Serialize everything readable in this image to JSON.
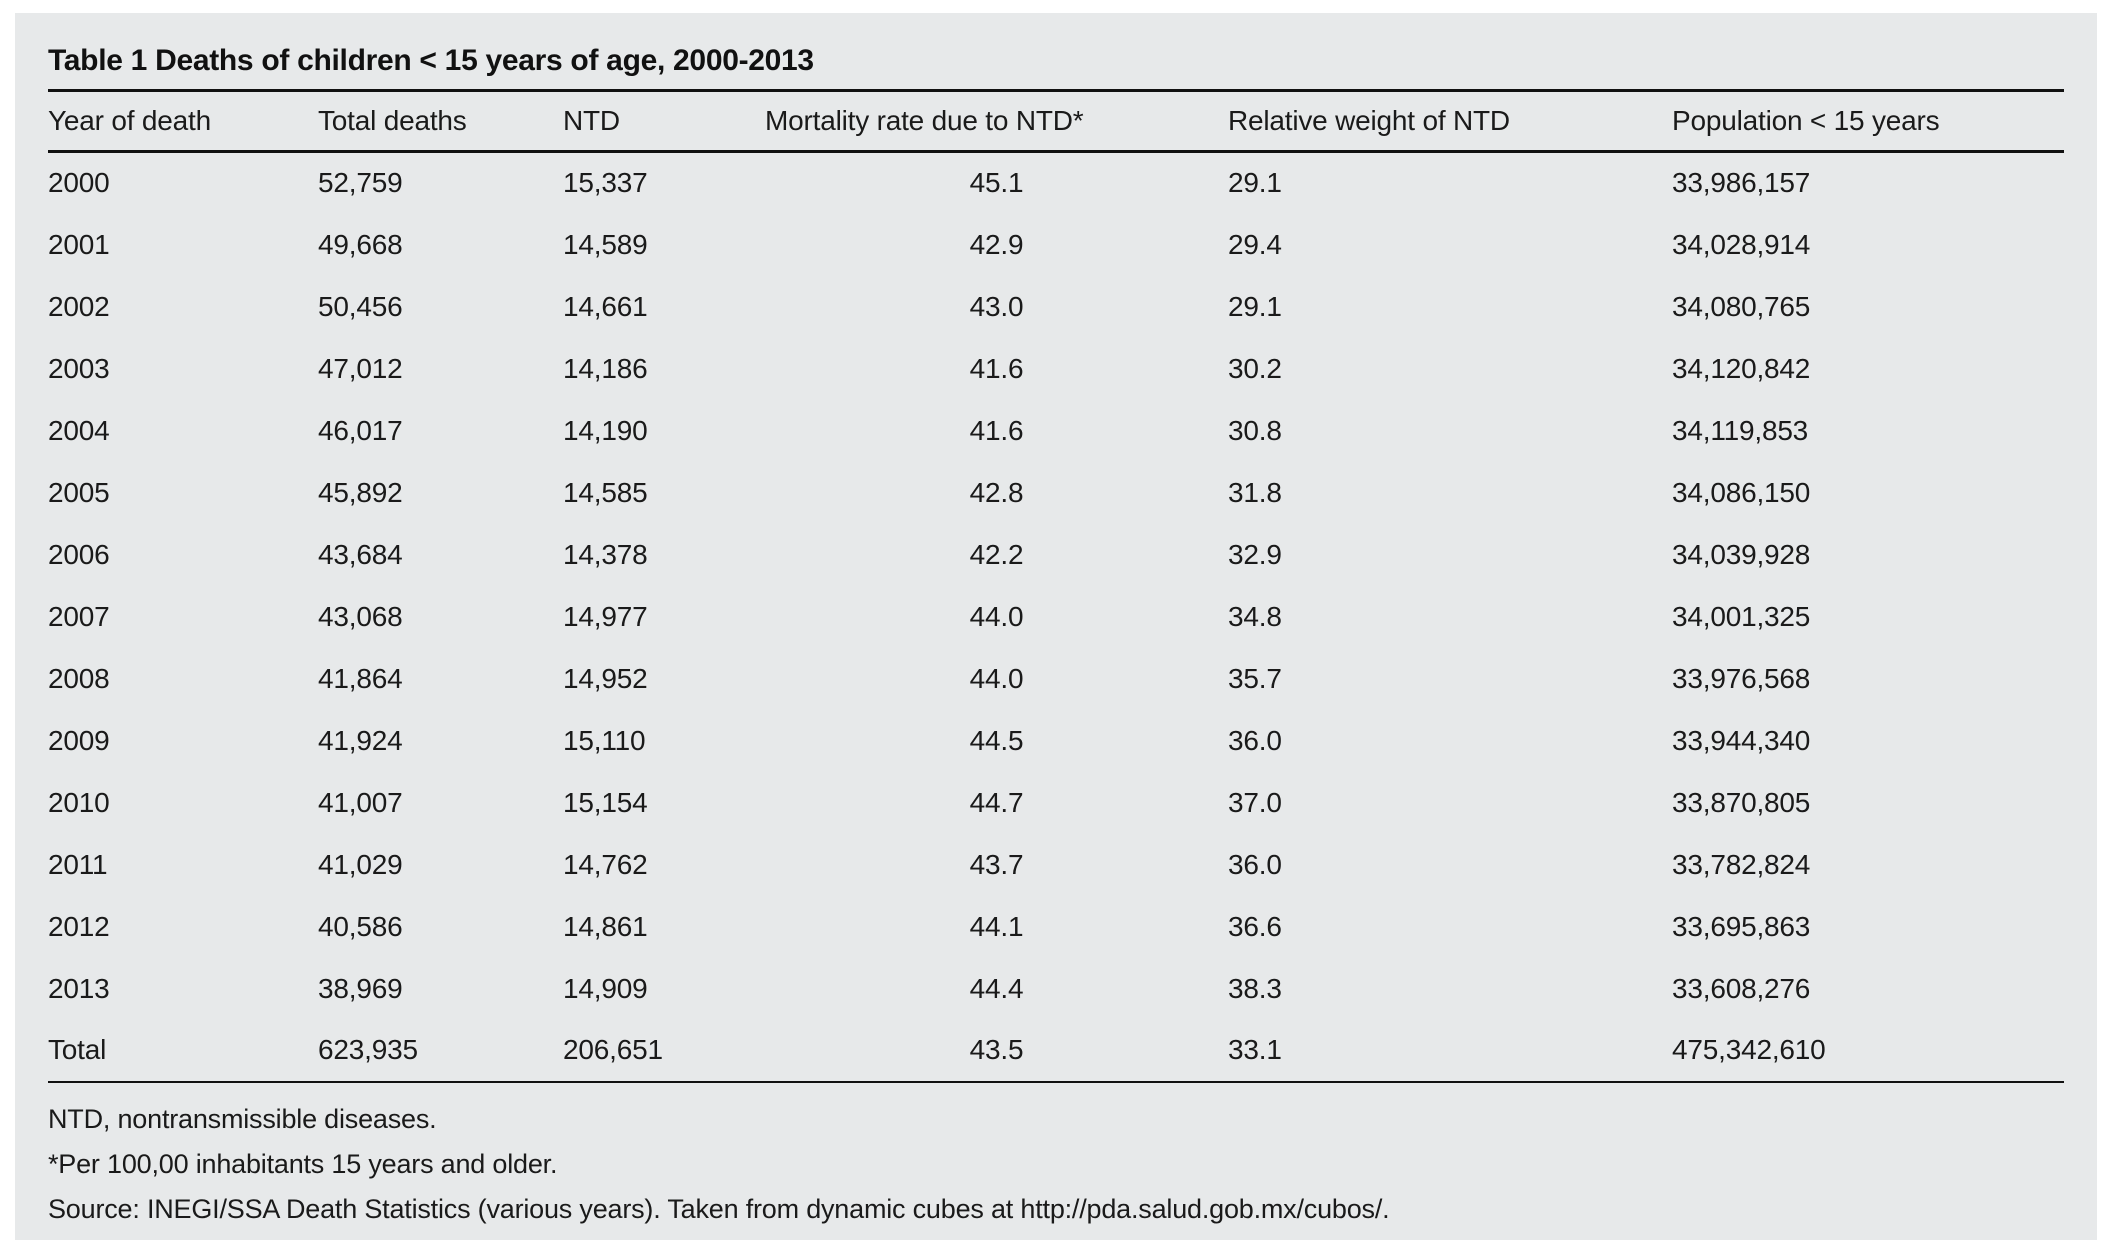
{
  "table": {
    "title": "Table 1 Deaths of children < 15 years of age, 2000-2013",
    "columns": [
      "Year of death",
      "Total deaths",
      "NTD",
      "Mortality rate due to NTD*",
      "Relative weight of NTD",
      "Population < 15 years"
    ],
    "rows": [
      [
        "2000",
        "52,759",
        "15,337",
        "45.1",
        "29.1",
        "33,986,157"
      ],
      [
        "2001",
        "49,668",
        "14,589",
        "42.9",
        "29.4",
        "34,028,914"
      ],
      [
        "2002",
        "50,456",
        "14,661",
        "43.0",
        "29.1",
        "34,080,765"
      ],
      [
        "2003",
        "47,012",
        "14,186",
        "41.6",
        "30.2",
        "34,120,842"
      ],
      [
        "2004",
        "46,017",
        "14,190",
        "41.6",
        "30.8",
        "34,119,853"
      ],
      [
        "2005",
        "45,892",
        "14,585",
        "42.8",
        "31.8",
        "34,086,150"
      ],
      [
        "2006",
        "43,684",
        "14,378",
        "42.2",
        "32.9",
        "34,039,928"
      ],
      [
        "2007",
        "43,068",
        "14,977",
        "44.0",
        "34.8",
        "34,001,325"
      ],
      [
        "2008",
        "41,864",
        "14,952",
        "44.0",
        "35.7",
        "33,976,568"
      ],
      [
        "2009",
        "41,924",
        "15,110",
        "44.5",
        "36.0",
        "33,944,340"
      ],
      [
        "2010",
        "41,007",
        "15,154",
        "44.7",
        "37.0",
        "33,870,805"
      ],
      [
        "2011",
        "41,029",
        "14,762",
        "43.7",
        "36.0",
        "33,782,824"
      ],
      [
        "2012",
        "40,586",
        "14,861",
        "44.1",
        "36.6",
        "33,695,863"
      ],
      [
        "2013",
        "38,969",
        "14,909",
        "44.4",
        "38.3",
        "33,608,276"
      ],
      [
        "Total",
        "623,935",
        "206,651",
        "43.5",
        "33.1",
        "475,342,610"
      ]
    ],
    "footnotes": [
      "NTD, nontransmissible diseases.",
      "*Per 100,00 inhabitants 15 years and older.",
      "Source: INEGI/SSA Death Statistics (various years). Taken from dynamic cubes at http://pda.salud.gob.mx/cubos/."
    ],
    "colors": {
      "panel_bg": "#e7e9ea",
      "text": "#1a1a1a",
      "rule": "#111111"
    }
  }
}
